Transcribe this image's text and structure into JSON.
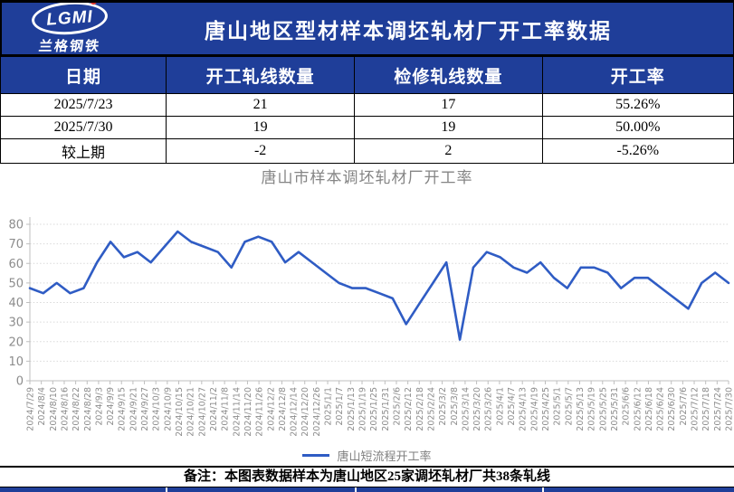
{
  "header": {
    "logo_text": "LGMI",
    "logo_subtext": "兰格钢铁",
    "title": "唐山地区型材样本调坯轧材厂开工率数据"
  },
  "table": {
    "columns": [
      "日期",
      "开工轧线数量",
      "检修轧线数量",
      "开工率"
    ],
    "rows": [
      [
        "2025/7/23",
        "21",
        "17",
        "55.26%"
      ],
      [
        "2025/7/30",
        "19",
        "19",
        "50.00%"
      ],
      [
        "较上期",
        "-2",
        "2",
        "-5.26%"
      ]
    ]
  },
  "chart_data": {
    "type": "line",
    "title": "唐山市样本调坯轧材厂开工率",
    "ylabel": "",
    "xlabel": "",
    "ylim": [
      0,
      80
    ],
    "y_ticks": [
      0,
      10,
      20,
      30,
      40,
      50,
      60,
      70,
      80
    ],
    "grid": "horizontal-dotted",
    "legend_position": "bottom",
    "x_tick_labels": [
      "2024/7/29",
      "2024/8/4",
      "2024/8/10",
      "2024/8/16",
      "2024/8/22",
      "2024/8/28",
      "2024/9/3",
      "2024/9/9",
      "2024/9/15",
      "2024/9/21",
      "2024/9/27",
      "2024/10/3",
      "2024/10/9",
      "2024/10/15",
      "2024/10/21",
      "2024/10/27",
      "2024/11/2",
      "2024/11/8",
      "2024/11/14",
      "2024/11/20",
      "2024/11/26",
      "2024/12/2",
      "2024/12/8",
      "2024/12/14",
      "2024/12/20",
      "2024/12/26",
      "2025/1/1",
      "2025/1/7",
      "2025/1/13",
      "2025/1/19",
      "2025/1/25",
      "2025/1/31",
      "2025/2/6",
      "2025/2/12",
      "2025/2/18",
      "2025/2/24",
      "2025/3/2",
      "2025/3/8",
      "2025/3/14",
      "2025/3/20",
      "2025/3/26",
      "2025/4/1",
      "2025/4/7",
      "2025/4/13",
      "2025/4/19",
      "2025/4/25",
      "2025/5/1",
      "2025/5/7",
      "2025/5/13",
      "2025/5/19",
      "2025/5/25",
      "2025/5/31",
      "2025/6/6",
      "2025/6/12",
      "2025/6/18",
      "2025/6/24",
      "2025/6/30",
      "2025/7/6",
      "2025/7/12",
      "2025/7/18",
      "2025/7/24",
      "2025/7/30"
    ],
    "series": [
      {
        "name": "唐山短流程开工率",
        "color": "#2f5cc4",
        "values": [
          47.37,
          44.74,
          50.0,
          44.74,
          47.37,
          60.53,
          71.05,
          63.16,
          65.79,
          60.53,
          68.42,
          76.32,
          71.05,
          68.42,
          65.79,
          57.89,
          71.05,
          73.68,
          71.05,
          60.53,
          65.79,
          60.53,
          55.26,
          50.0,
          47.37,
          47.37,
          44.74,
          42.11,
          28.95,
          39.47,
          50.0,
          60.53,
          21.05,
          57.89,
          65.79,
          63.16,
          57.89,
          55.26,
          60.53,
          52.63,
          47.37,
          57.89,
          57.89,
          55.26,
          47.37,
          52.63,
          52.63,
          47.37,
          42.11,
          36.84,
          50.0,
          55.26,
          50.0
        ]
      }
    ]
  },
  "legend": {
    "label": "唐山短流程开工率"
  },
  "footer": {
    "note": "备注：本图表数据样本为唐山地区25家调坯轧材厂共38条轧线"
  },
  "colors": {
    "brand_blue": "#1f3e99",
    "line_blue": "#2f5cc4",
    "axis_gray": "#8c8c8c",
    "grid_gray": "#d9d9d9",
    "logo_dot_red": "#e03a2f"
  }
}
